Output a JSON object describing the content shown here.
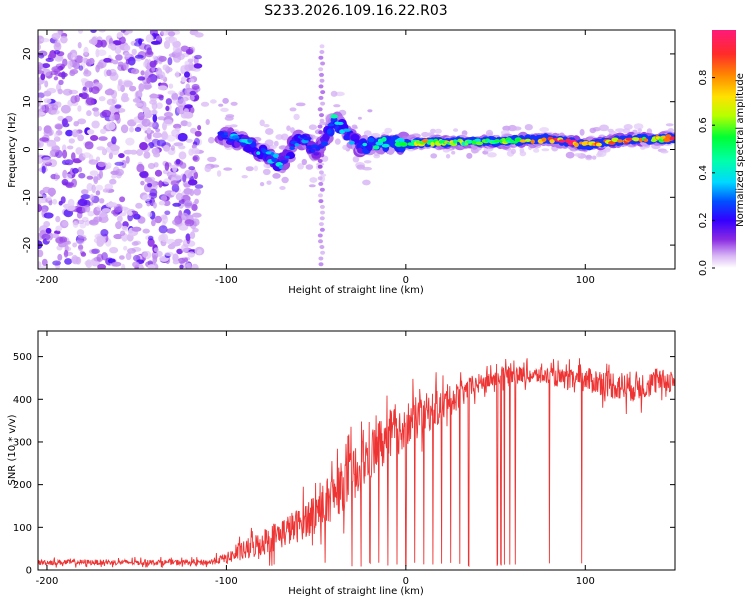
{
  "title": "S233.2026.109.16.22.R03",
  "colors": {
    "background": "#ffffff",
    "axis": "#000000",
    "snr_line": "#ee3333",
    "spectrum_noise": "#7b2ee6",
    "colorbar": [
      "#ffffff",
      "#d9b8f5",
      "#8a2be2",
      "#3300ff",
      "#0050ff",
      "#00d8ff",
      "#00ff66",
      "#b8ff00",
      "#ffe100",
      "#ff8800",
      "#ff2a2a",
      "#ff1a7a"
    ]
  },
  "chart_data": [
    {
      "type": "heatmap",
      "title": "S233.2026.109.16.22.R03",
      "xlabel": "Height of straight line (km)",
      "ylabel": "Frequency (Hz)",
      "xlim": [
        -205,
        150
      ],
      "ylim": [
        -25,
        25
      ],
      "xticks": [
        -200,
        -100,
        0,
        100
      ],
      "yticks": [
        -20,
        -10,
        0,
        10,
        20
      ],
      "xtick_labels": [
        "-200",
        "-100",
        "0",
        "100"
      ],
      "ytick_labels": [
        "-20",
        "-10",
        "0",
        "10",
        "20"
      ],
      "colorbar": {
        "label": "Normalized spectral amplitude",
        "range": [
          0,
          1
        ],
        "ticks": [
          "0.0",
          "0.2",
          "0.4",
          "0.6",
          "0.8"
        ]
      },
      "noise_region_x": [
        -205,
        -115
      ],
      "ridge": {
        "x": [
          -100,
          -90,
          -80,
          -70,
          -65,
          -60,
          -55,
          -50,
          -45,
          -40,
          -35,
          -30,
          -25,
          -20,
          -10,
          0,
          10,
          20,
          40,
          60,
          80,
          100,
          120,
          150
        ],
        "freq": [
          2.5,
          1.5,
          -0.5,
          -3.0,
          -1.0,
          2.5,
          1.5,
          -0.5,
          2.0,
          6.0,
          4.5,
          2.0,
          0.5,
          1.0,
          1.2,
          1.3,
          1.4,
          1.5,
          1.6,
          1.8,
          2.2,
          1.0,
          2.0,
          2.3
        ],
        "amplitude": [
          0.3,
          0.35,
          0.35,
          0.35,
          0.3,
          0.3,
          0.3,
          0.2,
          0.25,
          0.4,
          0.35,
          0.3,
          0.35,
          0.4,
          0.45,
          0.5,
          0.7,
          0.65,
          0.5,
          0.6,
          0.85,
          0.9,
          0.8,
          0.8
        ]
      }
    },
    {
      "type": "line",
      "xlabel": "Height of straight line (km)",
      "ylabel": "SNR (10 * v/v)",
      "xlim": [
        -205,
        150
      ],
      "ylim": [
        0,
        560
      ],
      "xticks": [
        -200,
        -100,
        0,
        100
      ],
      "yticks": [
        0,
        100,
        200,
        300,
        400,
        500
      ],
      "xtick_labels": [
        "-200",
        "-100",
        "0",
        "100"
      ],
      "ytick_labels": [
        "0",
        "100",
        "200",
        "300",
        "400",
        "500"
      ],
      "series": [
        {
          "name": "SNR",
          "x": [
            -205,
            -150,
            -110,
            -100,
            -90,
            -80,
            -70,
            -60,
            -50,
            -40,
            -30,
            -20,
            -10,
            0,
            10,
            20,
            30,
            40,
            50,
            60,
            70,
            80,
            90,
            100,
            110,
            120,
            130,
            140,
            150
          ],
          "mean": [
            18,
            18,
            18,
            28,
            45,
            65,
            85,
            105,
            140,
            175,
            220,
            270,
            310,
            340,
            365,
            385,
            410,
            435,
            450,
            460,
            455,
            455,
            445,
            445,
            440,
            430,
            430,
            440,
            445
          ],
          "spread": [
            8,
            8,
            8,
            15,
            30,
            40,
            45,
            50,
            60,
            70,
            80,
            80,
            80,
            70,
            60,
            50,
            40,
            30,
            25,
            25,
            25,
            25,
            30,
            35,
            40,
            45,
            45,
            35,
            35
          ],
          "dropouts_x": [
            -45,
            -30,
            -25,
            -20,
            -15,
            -10,
            -5,
            0,
            5,
            10,
            15,
            20,
            25,
            30,
            35,
            51,
            53,
            55,
            58,
            61,
            80,
            98
          ]
        }
      ]
    }
  ]
}
